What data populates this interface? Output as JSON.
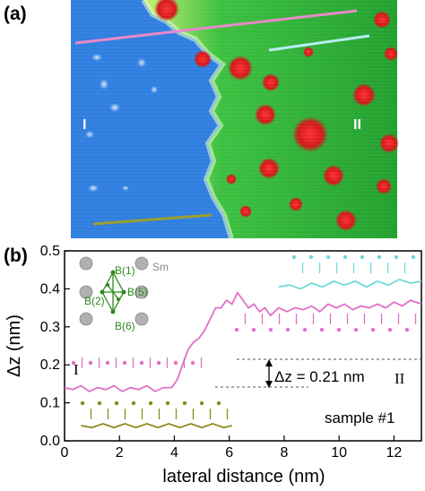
{
  "panel_a": {
    "label": "(a)",
    "region_left": "I",
    "region_right": "II",
    "line_colors": {
      "pink": "#e88ac8",
      "cyan": "#b8ecf2",
      "olive": "#9aa030"
    }
  },
  "panel_b": {
    "label": "(b)",
    "xlabel": "lateral distance (nm)",
    "ylabel": "Δz (nm)",
    "region_left": "I",
    "region_right": "II",
    "step_annotation": "Δz = 0.21 nm",
    "sample_label": "sample #1",
    "structure": {
      "sm_label": "Sm",
      "b1": "B(1)",
      "b2": "B(2)",
      "b5": "B(5)",
      "b6": "B(6)"
    }
  },
  "colors": {
    "profile_pink": "#e070c8",
    "profile_cyan": "#6fdad8",
    "profile_olive": "#8a8a1a",
    "boron": "#2e8b1e",
    "samarium": "#a8a8a8"
  },
  "chart_data": {
    "type": "line",
    "title": "",
    "xlabel": "lateral distance (nm)",
    "ylabel": "Δz (nm)",
    "xlim": [
      0,
      13
    ],
    "ylim": [
      0,
      0.5
    ],
    "xticks": [
      0,
      2,
      4,
      6,
      8,
      10,
      12
    ],
    "yticks": [
      0.0,
      0.1,
      0.2,
      0.3,
      0.4,
      0.5
    ],
    "series": [
      {
        "color": "#e070c8",
        "x": [
          0,
          0.3,
          0.6,
          0.9,
          1.2,
          1.5,
          1.8,
          2.1,
          2.4,
          2.7,
          3.0,
          3.3,
          3.6,
          3.9,
          4.1,
          4.3,
          4.5,
          4.7,
          4.9,
          5.1,
          5.3,
          5.5,
          5.7,
          5.9,
          6.1,
          6.3,
          6.5,
          6.7,
          6.9,
          7.1,
          7.3,
          7.5,
          7.8,
          8.1,
          8.4,
          8.7,
          9.0,
          9.3,
          9.6,
          9.9,
          10.2,
          10.5,
          10.8,
          11.1,
          11.4,
          11.7,
          12.0,
          12.3,
          12.6,
          13.0
        ],
        "y": [
          0.14,
          0.135,
          0.145,
          0.13,
          0.14,
          0.135,
          0.145,
          0.13,
          0.14,
          0.135,
          0.145,
          0.13,
          0.14,
          0.14,
          0.16,
          0.2,
          0.24,
          0.26,
          0.27,
          0.29,
          0.32,
          0.35,
          0.35,
          0.37,
          0.36,
          0.39,
          0.37,
          0.35,
          0.36,
          0.34,
          0.35,
          0.33,
          0.35,
          0.34,
          0.35,
          0.345,
          0.355,
          0.34,
          0.36,
          0.35,
          0.36,
          0.345,
          0.355,
          0.35,
          0.36,
          0.35,
          0.365,
          0.355,
          0.37,
          0.36
        ]
      },
      {
        "color": "#6fdad8",
        "x": [
          7.8,
          8.2,
          8.6,
          9.0,
          9.4,
          9.8,
          10.2,
          10.6,
          11.0,
          11.4,
          11.8,
          12.2,
          12.6,
          13.0
        ],
        "y": [
          0.405,
          0.41,
          0.4,
          0.415,
          0.405,
          0.42,
          0.41,
          0.42,
          0.405,
          0.42,
          0.41,
          0.425,
          0.415,
          0.42
        ]
      },
      {
        "color": "#8a8a1a",
        "x": [
          0.6,
          1.0,
          1.4,
          1.8,
          2.2,
          2.6,
          3.0,
          3.4,
          3.8,
          4.2,
          4.6,
          5.0,
          5.4,
          5.8,
          6.1
        ],
        "y": [
          0.04,
          0.035,
          0.045,
          0.035,
          0.045,
          0.035,
          0.045,
          0.035,
          0.045,
          0.035,
          0.045,
          0.035,
          0.045,
          0.035,
          0.04
        ]
      }
    ],
    "annotations": [
      "I",
      "II",
      "Δz = 0.21 nm",
      "sample #1"
    ]
  }
}
